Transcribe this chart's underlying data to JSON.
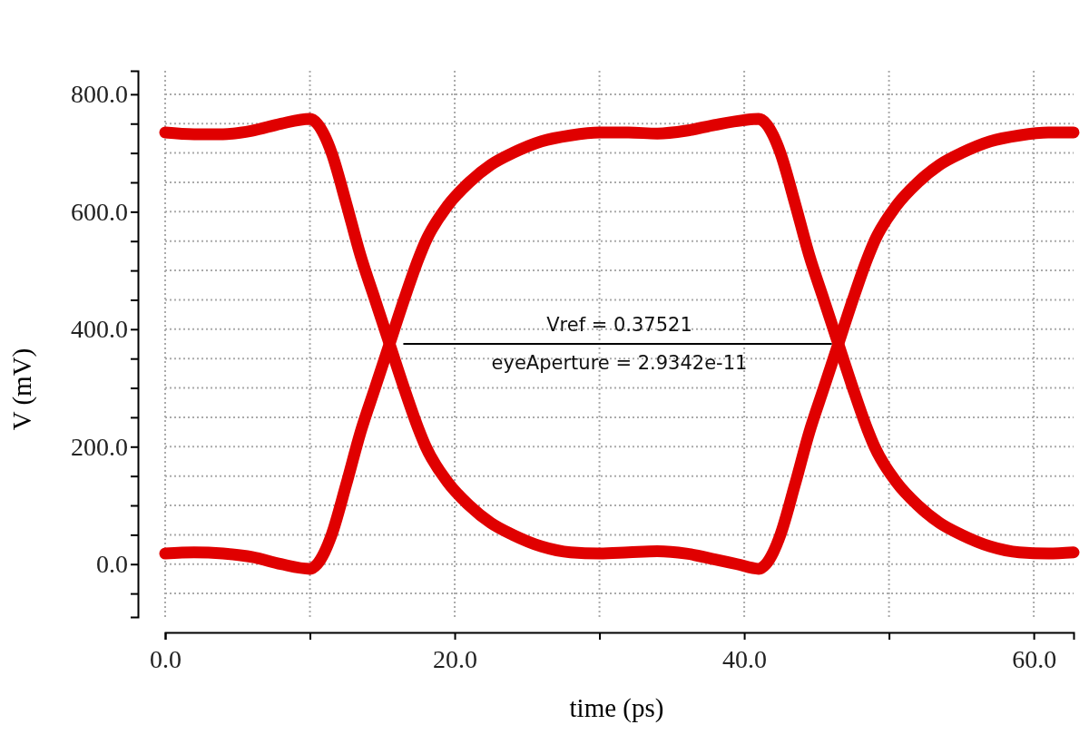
{
  "chart_data": {
    "type": "line",
    "xlabel": "time (ps)",
    "ylabel": "V (mV)",
    "xlim": [
      0,
      62.75
    ],
    "ylim": [
      -90,
      840
    ],
    "xticks": [
      {
        "value": 0,
        "label": "0.0"
      },
      {
        "value": 10,
        "label": null
      },
      {
        "value": 20,
        "label": "20.0"
      },
      {
        "value": 30,
        "label": null
      },
      {
        "value": 40,
        "label": "40.0"
      },
      {
        "value": 50,
        "label": null
      },
      {
        "value": 60,
        "label": "60.0"
      }
    ],
    "yticks": [
      {
        "value": -50,
        "label": null
      },
      {
        "value": 0,
        "label": "0.0"
      },
      {
        "value": 50,
        "label": null
      },
      {
        "value": 100,
        "label": null
      },
      {
        "value": 150,
        "label": null
      },
      {
        "value": 200,
        "label": "200.0"
      },
      {
        "value": 250,
        "label": null
      },
      {
        "value": 300,
        "label": null
      },
      {
        "value": 350,
        "label": null
      },
      {
        "value": 400,
        "label": "400.0"
      },
      {
        "value": 450,
        "label": null
      },
      {
        "value": 500,
        "label": null
      },
      {
        "value": 550,
        "label": null
      },
      {
        "value": 600,
        "label": "600.0"
      },
      {
        "value": 650,
        "label": null
      },
      {
        "value": 700,
        "label": null
      },
      {
        "value": 750,
        "label": null
      },
      {
        "value": 800,
        "label": "800.0"
      }
    ],
    "grid": true,
    "line_style": "solid",
    "marker": "none",
    "series": [
      {
        "color": "#e00000",
        "x": [
          0,
          2,
          4,
          6,
          8,
          10,
          10.5,
          11,
          11.5,
          12.5,
          13.5,
          14.5,
          15.5,
          16.5,
          17.5,
          18,
          19.5,
          21,
          22.5,
          24,
          26,
          28,
          30,
          32,
          34,
          36,
          38,
          39.5,
          41,
          41.5,
          42,
          42.5,
          43.5,
          44.5,
          45.5,
          46.5,
          47.5,
          48.5,
          49,
          50.5,
          52,
          53.5,
          55,
          57,
          59,
          61,
          62.75
        ],
        "values": [
          735,
          732,
          732,
          738,
          750,
          758,
          750,
          730,
          700,
          615,
          525,
          450,
          375,
          300,
          230,
          200,
          140,
          100,
          70,
          50,
          30,
          20,
          18,
          20,
          22,
          18,
          8,
          0,
          -8,
          0,
          20,
          50,
          135,
          225,
          300,
          375,
          450,
          520,
          550,
          610,
          650,
          680,
          700,
          720,
          730,
          735,
          735
        ]
      },
      {
        "color": "#e00000",
        "x": [
          0,
          2,
          4,
          6,
          8,
          10,
          10.5,
          11,
          11.5,
          12.5,
          13.5,
          14.5,
          15.5,
          16.5,
          17.5,
          18,
          19.5,
          21,
          22.5,
          24,
          26,
          28,
          30,
          32,
          34,
          36,
          38,
          40,
          41,
          41.5,
          42,
          42.5,
          43.5,
          44.5,
          45.5,
          46.5,
          47.5,
          48.5,
          49,
          50.5,
          52,
          53.5,
          55,
          57,
          59,
          61,
          62.75
        ],
        "values": [
          18,
          20,
          18,
          12,
          0,
          -8,
          0,
          20,
          50,
          135,
          225,
          300,
          375,
          450,
          520,
          550,
          610,
          650,
          680,
          700,
          720,
          730,
          735,
          735,
          733,
          738,
          748,
          756,
          758,
          750,
          730,
          700,
          615,
          525,
          450,
          375,
          300,
          230,
          200,
          140,
          100,
          70,
          50,
          30,
          20,
          18,
          20
        ]
      },
      {
        "color": "#000000",
        "x": [
          16.5,
          46
        ],
        "values": [
          375,
          375
        ]
      }
    ],
    "annotations": [
      "Vref = 0.37521",
      "eyeAperture = 2.9342e-11"
    ]
  }
}
